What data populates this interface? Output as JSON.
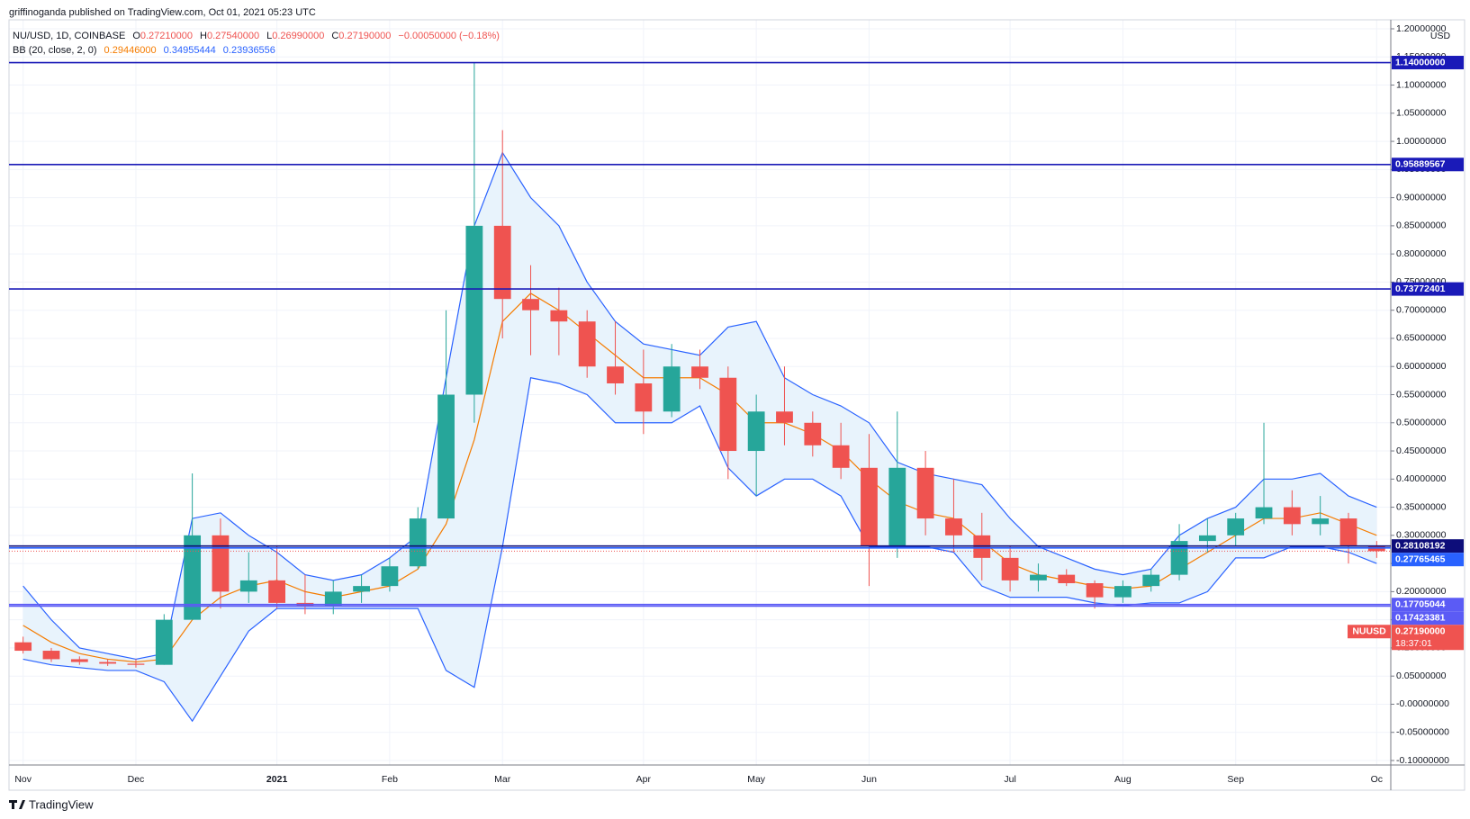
{
  "header": {
    "byline": "griffinoganda published on TradingView.com, Oct 01, 2021 05:23 UTC"
  },
  "footer": {
    "brand": "TradingView"
  },
  "chart_data": {
    "type": "candlestick",
    "legend": {
      "symbol": "NU/USD, 1D, COINBASE",
      "ohlc": [
        {
          "key": "O",
          "value": "0.27210000"
        },
        {
          "key": "H",
          "value": "0.27540000"
        },
        {
          "key": "L",
          "value": "0.26990000"
        },
        {
          "key": "C",
          "value": "0.27190000"
        }
      ],
      "change": "−0.00050000 (−0.18%)",
      "indicator": "BB (20, close, 2, 0)",
      "indicator_values": [
        {
          "value": "0.29446000",
          "color": "#f57c00"
        },
        {
          "value": "0.34955444",
          "color": "#2962ff"
        },
        {
          "value": "0.23936556",
          "color": "#2962ff"
        }
      ]
    },
    "categories": [
      "Nov",
      null,
      null,
      null,
      "Dec",
      null,
      null,
      null,
      null,
      "2021",
      null,
      null,
      null,
      "Feb",
      null,
      null,
      null,
      "Mar",
      null,
      null,
      null,
      null,
      "Apr",
      null,
      null,
      null,
      "May",
      null,
      null,
      null,
      "Jun",
      null,
      null,
      null,
      null,
      "Jul",
      null,
      null,
      null,
      "Aug",
      null,
      null,
      null,
      "Sep",
      null,
      null,
      null,
      null,
      "Oc"
    ],
    "open": [
      0.11,
      0.095,
      0.08,
      0.075,
      0.072,
      0.07,
      0.15,
      0.3,
      0.2,
      0.22,
      0.18,
      0.175,
      0.2,
      0.21,
      0.245,
      0.33,
      0.55,
      0.85,
      0.72,
      0.7,
      0.68,
      0.6,
      0.57,
      0.52,
      0.6,
      0.58,
      0.45,
      0.52,
      0.5,
      0.46,
      0.42,
      0.28,
      0.42,
      0.33,
      0.3,
      0.26,
      0.22,
      0.23,
      0.215,
      0.19,
      0.21,
      0.23,
      0.29,
      0.3,
      0.33,
      0.35,
      0.32,
      0.33,
      0.28
    ],
    "high": [
      0.12,
      0.1,
      0.085,
      0.08,
      0.08,
      0.16,
      0.41,
      0.33,
      0.27,
      0.28,
      0.23,
      0.22,
      0.23,
      0.26,
      0.35,
      0.7,
      1.14,
      1.02,
      0.78,
      0.74,
      0.7,
      0.68,
      0.63,
      0.64,
      0.63,
      0.6,
      0.55,
      0.6,
      0.52,
      0.5,
      0.48,
      0.52,
      0.45,
      0.4,
      0.34,
      0.28,
      0.25,
      0.24,
      0.22,
      0.22,
      0.24,
      0.32,
      0.33,
      0.34,
      0.5,
      0.38,
      0.37,
      0.34,
      0.29
    ],
    "low": [
      0.09,
      0.075,
      0.07,
      0.068,
      0.065,
      0.07,
      0.15,
      0.17,
      0.18,
      0.17,
      0.16,
      0.16,
      0.18,
      0.2,
      0.24,
      0.33,
      0.5,
      0.65,
      0.62,
      0.62,
      0.58,
      0.55,
      0.48,
      0.51,
      0.56,
      0.4,
      0.37,
      0.46,
      0.44,
      0.4,
      0.21,
      0.26,
      0.3,
      0.27,
      0.22,
      0.2,
      0.2,
      0.21,
      0.17,
      0.18,
      0.2,
      0.22,
      0.27,
      0.28,
      0.32,
      0.3,
      0.3,
      0.25,
      0.26
    ],
    "close": [
      0.095,
      0.08,
      0.075,
      0.072,
      0.07,
      0.15,
      0.3,
      0.2,
      0.22,
      0.18,
      0.175,
      0.2,
      0.21,
      0.245,
      0.33,
      0.55,
      0.85,
      0.72,
      0.7,
      0.68,
      0.6,
      0.57,
      0.52,
      0.6,
      0.58,
      0.45,
      0.52,
      0.5,
      0.46,
      0.42,
      0.28,
      0.42,
      0.33,
      0.3,
      0.26,
      0.22,
      0.23,
      0.215,
      0.19,
      0.21,
      0.23,
      0.29,
      0.3,
      0.33,
      0.35,
      0.32,
      0.33,
      0.28,
      0.2719
    ],
    "up_color": "#26a69a",
    "down_color": "#ef5350",
    "bands": {
      "upper": [
        0.21,
        0.15,
        0.1,
        0.09,
        0.08,
        0.09,
        0.33,
        0.34,
        0.3,
        0.27,
        0.23,
        0.22,
        0.23,
        0.26,
        0.3,
        0.58,
        0.85,
        0.98,
        0.9,
        0.85,
        0.75,
        0.68,
        0.64,
        0.63,
        0.62,
        0.67,
        0.68,
        0.58,
        0.55,
        0.53,
        0.5,
        0.43,
        0.41,
        0.4,
        0.39,
        0.33,
        0.28,
        0.26,
        0.24,
        0.23,
        0.24,
        0.3,
        0.33,
        0.35,
        0.4,
        0.4,
        0.41,
        0.37,
        0.35
      ],
      "basis": [
        0.14,
        0.11,
        0.09,
        0.08,
        0.075,
        0.08,
        0.15,
        0.19,
        0.21,
        0.22,
        0.2,
        0.19,
        0.2,
        0.21,
        0.24,
        0.32,
        0.47,
        0.68,
        0.73,
        0.7,
        0.66,
        0.62,
        0.58,
        0.58,
        0.58,
        0.55,
        0.5,
        0.5,
        0.48,
        0.45,
        0.4,
        0.36,
        0.34,
        0.33,
        0.29,
        0.25,
        0.23,
        0.22,
        0.21,
        0.205,
        0.21,
        0.24,
        0.27,
        0.3,
        0.33,
        0.33,
        0.34,
        0.32,
        0.3
      ],
      "lower": [
        0.08,
        0.07,
        0.065,
        0.06,
        0.06,
        0.04,
        -0.03,
        0.05,
        0.13,
        0.17,
        0.17,
        0.17,
        0.17,
        0.17,
        0.17,
        0.06,
        0.03,
        0.28,
        0.58,
        0.57,
        0.55,
        0.5,
        0.5,
        0.5,
        0.53,
        0.42,
        0.37,
        0.4,
        0.4,
        0.37,
        0.28,
        0.28,
        0.28,
        0.27,
        0.21,
        0.19,
        0.19,
        0.19,
        0.18,
        0.175,
        0.18,
        0.18,
        0.2,
        0.26,
        0.26,
        0.28,
        0.28,
        0.27,
        0.25
      ],
      "band_color": "#2962ff",
      "basis_color": "#f57c00",
      "fill": "#e8f3fc"
    },
    "ylim": [
      -0.1,
      1.2
    ],
    "yticks": [
      {
        "value": -0.1,
        "label": "-0.10000000"
      },
      {
        "value": -0.05,
        "label": "-0.05000000"
      },
      {
        "value": 0,
        "label": "-0.00000000"
      },
      {
        "value": 0.05,
        "label": "0.05000000"
      },
      {
        "value": 0.1,
        "label": "0.10000000"
      },
      {
        "value": 0.15,
        "label": "0.15000000"
      },
      {
        "value": 0.2,
        "label": "0.20000000"
      },
      {
        "value": 0.25,
        "label": "0.25000000"
      },
      {
        "value": 0.3,
        "label": "0.30000000"
      },
      {
        "value": 0.35,
        "label": "0.35000000"
      },
      {
        "value": 0.4,
        "label": "0.40000000"
      },
      {
        "value": 0.45,
        "label": "0.45000000"
      },
      {
        "value": 0.5,
        "label": "0.50000000"
      },
      {
        "value": 0.55,
        "label": "0.55000000"
      },
      {
        "value": 0.6,
        "label": "0.60000000"
      },
      {
        "value": 0.65,
        "label": "0.65000000"
      },
      {
        "value": 0.7,
        "label": "0.70000000"
      },
      {
        "value": 0.75,
        "label": "0.75000000"
      },
      {
        "value": 0.8,
        "label": "0.80000000"
      },
      {
        "value": 0.85,
        "label": "0.85000000"
      },
      {
        "value": 0.9,
        "label": "0.90000000"
      },
      {
        "value": 0.95,
        "label": "0.95000000"
      },
      {
        "value": 1.0,
        "label": "1.00000000"
      },
      {
        "value": 1.05,
        "label": "1.05000000"
      },
      {
        "value": 1.1,
        "label": "1.10000000"
      },
      {
        "value": 1.15,
        "label": "1.15000000"
      },
      {
        "value": 1.2,
        "label": "1.20000000"
      }
    ],
    "y_unit": "USD",
    "grid": true,
    "levels": [
      {
        "value": 1.14,
        "label": "1.14000000",
        "color": "#1a1ab8"
      },
      {
        "value": 0.95889567,
        "label": "0.95889567",
        "color": "#1a1ab8"
      },
      {
        "value": 0.73772401,
        "label": "0.73772401",
        "color": "#1a1ab8"
      },
      {
        "value": 0.28108192,
        "label": "0.28108192",
        "color": "#0d0d7a"
      },
      {
        "value": 0.27765465,
        "label": "0.27765465",
        "color": "#2962ff"
      },
      {
        "value": 0.17705044,
        "label": "0.17705044",
        "color": "#5b5bf5"
      },
      {
        "value": 0.17423381,
        "label": "0.17423381",
        "color": "#5b5bf5"
      }
    ],
    "last_price": {
      "value": 0.2719,
      "label": "0.27190000",
      "symbol": "NUUSD",
      "countdown": "18:37:01",
      "color": "#ef5350"
    }
  }
}
